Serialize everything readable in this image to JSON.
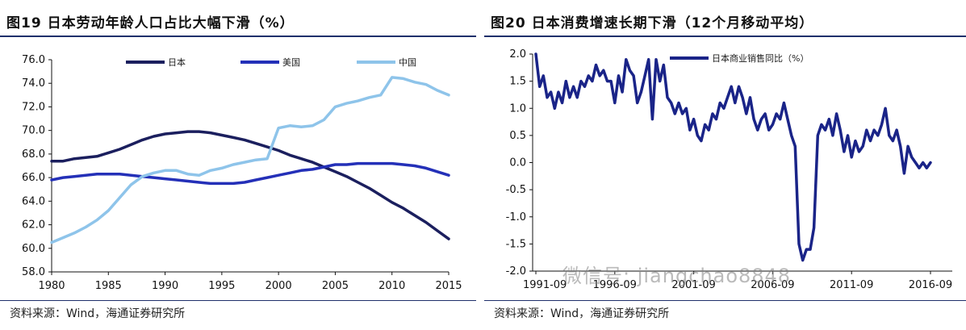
{
  "left_panel": {
    "title": "图19 日本劳动年龄人口占比大幅下滑（%）",
    "source": "资料来源：Wind，海通证券研究所"
  },
  "right_panel": {
    "title": "图20 日本消费增速长期下滑（12个月移动平均）",
    "source": "资料来源：Wind，海通证券研究所",
    "watermark": "微信号: jiangchao8848"
  },
  "colors": {
    "japan": "#1b1f5e",
    "usa": "#2430b8",
    "china": "#8ec4ea",
    "retail": "#1a2488",
    "rule": "#1f2f6b"
  },
  "chart_data": [
    {
      "type": "line",
      "title": "",
      "xlabel": "",
      "ylabel": "",
      "xlim": [
        1980,
        2015
      ],
      "ylim": [
        58.0,
        76.0
      ],
      "x_ticks": [
        "1980",
        "1985",
        "1990",
        "1995",
        "2000",
        "2005",
        "2010",
        "2015"
      ],
      "y_ticks": [
        "58.0",
        "60.0",
        "62.0",
        "64.0",
        "66.0",
        "68.0",
        "70.0",
        "72.0",
        "74.0",
        "76.0"
      ],
      "legend_position": "top",
      "grid": false,
      "series": [
        {
          "name": "日本",
          "color": "#1b1f5e",
          "points": [
            [
              1980,
              67.4
            ],
            [
              1981,
              67.4
            ],
            [
              1982,
              67.6
            ],
            [
              1983,
              67.7
            ],
            [
              1984,
              67.8
            ],
            [
              1985,
              68.1
            ],
            [
              1986,
              68.4
            ],
            [
              1987,
              68.8
            ],
            [
              1988,
              69.2
            ],
            [
              1989,
              69.5
            ],
            [
              1990,
              69.7
            ],
            [
              1991,
              69.8
            ],
            [
              1992,
              69.9
            ],
            [
              1993,
              69.9
            ],
            [
              1994,
              69.8
            ],
            [
              1995,
              69.6
            ],
            [
              1996,
              69.4
            ],
            [
              1997,
              69.2
            ],
            [
              1998,
              68.9
            ],
            [
              1999,
              68.6
            ],
            [
              2000,
              68.3
            ],
            [
              2001,
              67.9
            ],
            [
              2002,
              67.6
            ],
            [
              2003,
              67.3
            ],
            [
              2004,
              66.9
            ],
            [
              2005,
              66.5
            ],
            [
              2006,
              66.1
            ],
            [
              2007,
              65.6
            ],
            [
              2008,
              65.1
            ],
            [
              2009,
              64.5
            ],
            [
              2010,
              63.9
            ],
            [
              2011,
              63.4
            ],
            [
              2012,
              62.8
            ],
            [
              2013,
              62.2
            ],
            [
              2014,
              61.5
            ],
            [
              2015,
              60.8
            ]
          ]
        },
        {
          "name": "美国",
          "color": "#2430b8",
          "points": [
            [
              1980,
              65.8
            ],
            [
              1981,
              66.0
            ],
            [
              1982,
              66.1
            ],
            [
              1983,
              66.2
            ],
            [
              1984,
              66.3
            ],
            [
              1985,
              66.3
            ],
            [
              1986,
              66.3
            ],
            [
              1987,
              66.2
            ],
            [
              1988,
              66.1
            ],
            [
              1989,
              66.0
            ],
            [
              1990,
              65.9
            ],
            [
              1991,
              65.8
            ],
            [
              1992,
              65.7
            ],
            [
              1993,
              65.6
            ],
            [
              1994,
              65.5
            ],
            [
              1995,
              65.5
            ],
            [
              1996,
              65.5
            ],
            [
              1997,
              65.6
            ],
            [
              1998,
              65.8
            ],
            [
              1999,
              66.0
            ],
            [
              2000,
              66.2
            ],
            [
              2001,
              66.4
            ],
            [
              2002,
              66.6
            ],
            [
              2003,
              66.7
            ],
            [
              2004,
              66.9
            ],
            [
              2005,
              67.1
            ],
            [
              2006,
              67.1
            ],
            [
              2007,
              67.2
            ],
            [
              2008,
              67.2
            ],
            [
              2009,
              67.2
            ],
            [
              2010,
              67.2
            ],
            [
              2011,
              67.1
            ],
            [
              2012,
              67.0
            ],
            [
              2013,
              66.8
            ],
            [
              2014,
              66.5
            ],
            [
              2015,
              66.2
            ]
          ]
        },
        {
          "name": "中国",
          "color": "#8ec4ea",
          "points": [
            [
              1980,
              60.5
            ],
            [
              1981,
              60.9
            ],
            [
              1982,
              61.3
            ],
            [
              1983,
              61.8
            ],
            [
              1984,
              62.4
            ],
            [
              1985,
              63.2
            ],
            [
              1986,
              64.3
            ],
            [
              1987,
              65.4
            ],
            [
              1988,
              66.1
            ],
            [
              1989,
              66.4
            ],
            [
              1990,
              66.6
            ],
            [
              1991,
              66.6
            ],
            [
              1992,
              66.3
            ],
            [
              1993,
              66.2
            ],
            [
              1994,
              66.6
            ],
            [
              1995,
              66.8
            ],
            [
              1996,
              67.1
            ],
            [
              1997,
              67.3
            ],
            [
              1998,
              67.5
            ],
            [
              1999,
              67.6
            ],
            [
              2000,
              70.2
            ],
            [
              2001,
              70.4
            ],
            [
              2002,
              70.3
            ],
            [
              2003,
              70.4
            ],
            [
              2004,
              70.9
            ],
            [
              2005,
              72.0
            ],
            [
              2006,
              72.3
            ],
            [
              2007,
              72.5
            ],
            [
              2008,
              72.8
            ],
            [
              2009,
              73.0
            ],
            [
              2010,
              74.5
            ],
            [
              2011,
              74.4
            ],
            [
              2012,
              74.1
            ],
            [
              2013,
              73.9
            ],
            [
              2014,
              73.4
            ],
            [
              2015,
              73.0
            ]
          ]
        }
      ]
    },
    {
      "type": "line",
      "title": "",
      "xlabel": "",
      "ylabel": "",
      "ylim": [
        -2.0,
        2.0
      ],
      "x_ticks": [
        "1991-09",
        "1996-09",
        "2001-09",
        "2006-09",
        "2011-09",
        "2016-09"
      ],
      "y_ticks": [
        "2.0",
        "1.5",
        "1.0",
        "0.5",
        "0.0",
        "-0.5",
        "-1.0",
        "-1.5",
        "-2.0"
      ],
      "legend_position": "top",
      "grid": false,
      "series": [
        {
          "name": "日本商业销售同比（%）",
          "color": "#1a2488",
          "x_start": "1991-09",
          "values": [
            2.0,
            1.4,
            1.6,
            1.2,
            1.3,
            1.0,
            1.3,
            1.1,
            1.5,
            1.2,
            1.4,
            1.2,
            1.5,
            1.4,
            1.6,
            1.5,
            1.8,
            1.6,
            1.7,
            1.5,
            1.5,
            1.1,
            1.6,
            1.3,
            1.9,
            1.7,
            1.6,
            1.1,
            1.3,
            1.6,
            1.9,
            0.8,
            1.9,
            1.5,
            1.8,
            1.2,
            1.1,
            0.9,
            1.1,
            0.9,
            1.0,
            0.6,
            0.8,
            0.5,
            0.4,
            0.7,
            0.6,
            0.9,
            0.8,
            1.1,
            1.0,
            1.2,
            1.4,
            1.1,
            1.4,
            1.2,
            0.9,
            1.2,
            0.8,
            0.6,
            0.8,
            0.9,
            0.6,
            0.7,
            0.9,
            0.8,
            1.1,
            0.8,
            0.5,
            0.3,
            -1.5,
            -1.8,
            -1.6,
            -1.6,
            -1.2,
            0.5,
            0.7,
            0.6,
            0.8,
            0.5,
            0.9,
            0.6,
            0.2,
            0.5,
            0.1,
            0.4,
            0.2,
            0.3,
            0.6,
            0.4,
            0.6,
            0.5,
            0.7,
            1.0,
            0.5,
            0.4,
            0.6,
            0.3,
            -0.2,
            0.3,
            0.1,
            0.0,
            -0.1,
            0.0,
            -0.1,
            0.0
          ]
        }
      ]
    }
  ]
}
